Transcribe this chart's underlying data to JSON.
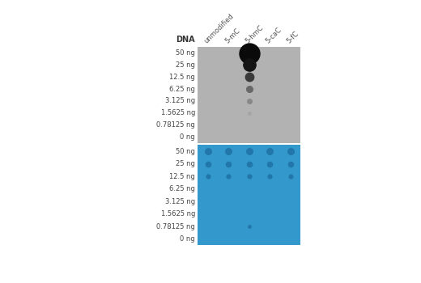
{
  "fig_width": 5.2,
  "fig_height": 3.5,
  "dpi": 100,
  "bg_color": "#ffffff",
  "columns": [
    "unmodified",
    "5-mC",
    "5-hmC",
    "5-caC",
    "5-fC"
  ],
  "rows": [
    "50 ng",
    "25 ng",
    "12.5 ng",
    "6.25 ng",
    "3.125 ng",
    "1.5625 ng",
    "0.78125 ng",
    "0 ng"
  ],
  "dna_label": "DNA",
  "panel1_bg": "#b2b2b2",
  "panel2_bg": "#3399cc",
  "p1l": 0.445,
  "p1r": 0.76,
  "p1b": 0.5,
  "p1t": 0.94,
  "p2l": 0.445,
  "p2r": 0.76,
  "p2b": 0.03,
  "p2t": 0.49,
  "label_fontsize": 6.0,
  "dna_label_fontsize": 7.0,
  "col_label_fontsize": 6.0,
  "p1_dot_sizes": [
    18.0,
    11.0,
    7.5,
    5.5,
    4.0,
    2.5,
    0,
    0
  ],
  "p1_dot_colors": [
    "#0a0a0a",
    "#141414",
    "#3a3a3a",
    "#686868",
    "#888888",
    "#a5a5a5",
    "#b8b8b8",
    "#c2c2c2"
  ],
  "p1_dot_col_idx": 2,
  "p2_dot_sizes_by_row": [
    [
      5.5,
      5.5,
      5.5,
      5.5,
      5.5
    ],
    [
      4.5,
      4.5,
      4.5,
      4.5,
      4.5
    ],
    [
      3.5,
      3.5,
      3.5,
      3.5,
      3.5
    ],
    [
      0,
      0,
      0,
      0,
      0
    ],
    [
      0,
      0,
      0,
      0,
      0
    ],
    [
      0,
      0,
      0,
      0,
      0
    ],
    [
      0,
      0,
      2.5,
      0,
      0
    ],
    [
      0,
      0,
      0,
      0,
      0
    ]
  ],
  "p2_dot_color": "#2277aa"
}
